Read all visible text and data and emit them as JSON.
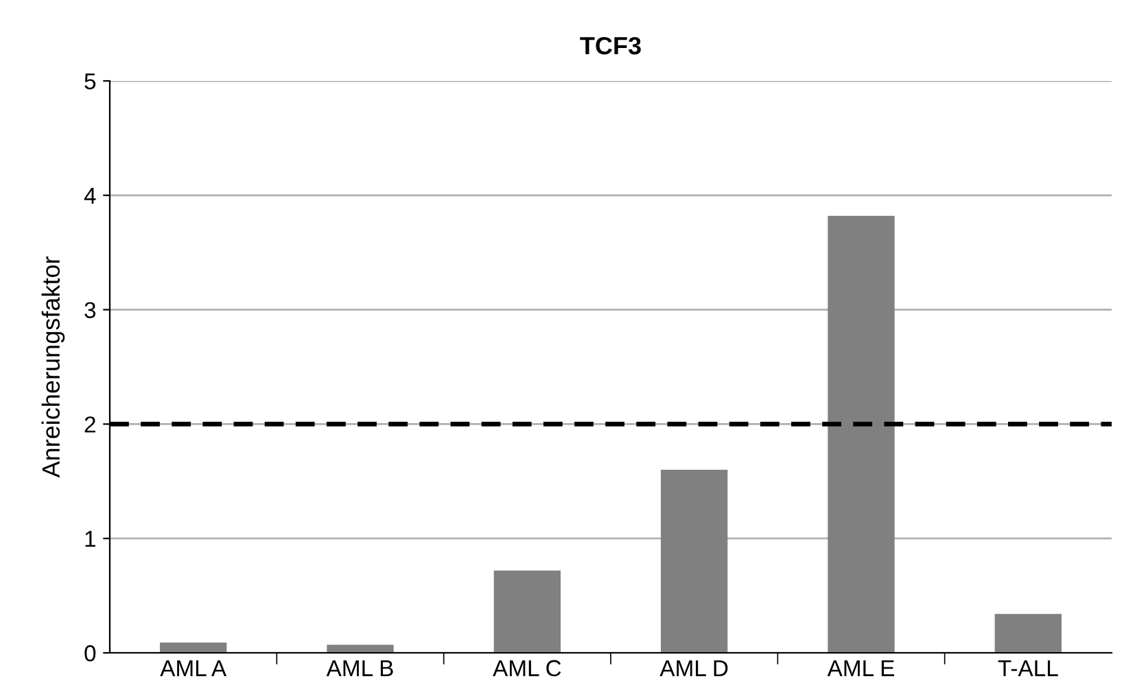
{
  "chart_data": {
    "type": "bar",
    "title": "TCF3",
    "ylabel": "Anreicherungsfaktor",
    "categories": [
      "AML A",
      "AML B",
      "AML C",
      "AML D",
      "AML E",
      "T-ALL"
    ],
    "values": [
      0.09,
      0.07,
      0.72,
      1.6,
      3.82,
      0.34
    ],
    "color": "#808080",
    "ylim": [
      0,
      5
    ],
    "yticks": [
      0,
      1,
      2,
      3,
      4,
      5
    ],
    "grid": "y",
    "ref_lines": [
      {
        "axis": "y",
        "value": 2,
        "color": "#000000",
        "line_style": "dashed"
      }
    ]
  }
}
